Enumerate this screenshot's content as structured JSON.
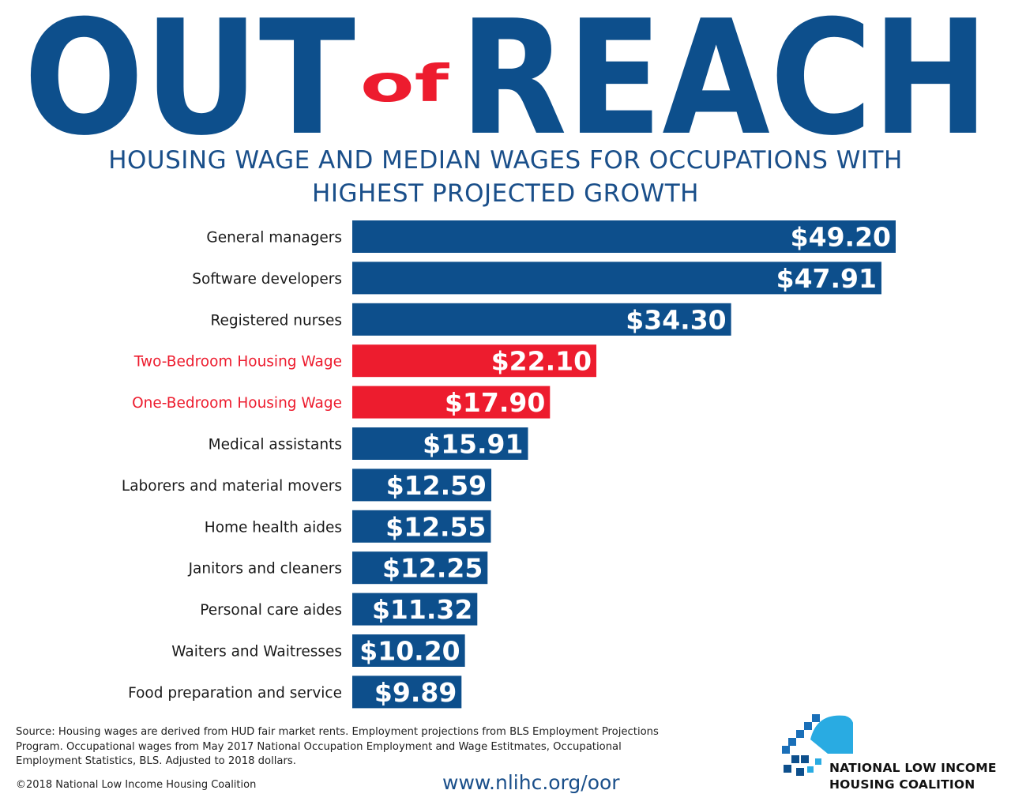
{
  "banner": {
    "word_out": "OUT",
    "word_of": "of",
    "word_reach": "REACH"
  },
  "subtitle": {
    "line1": "HOUSING WAGE AND MEDIAN WAGES FOR OCCUPATIONS WITH",
    "line2": "HIGHEST PROJECTED GROWTH"
  },
  "colors": {
    "blue": "#0d4f8c",
    "red": "#ed1c2e",
    "title_blue": "#1a4f8a",
    "logo_light": "#29abe2"
  },
  "chart_data": {
    "type": "bar",
    "orientation": "horizontal",
    "title": "HOUSING WAGE AND MEDIAN WAGES FOR OCCUPATIONS WITH HIGHEST PROJECTED GROWTH",
    "xlabel": "",
    "ylabel": "",
    "xlim": [
      0,
      50
    ],
    "grid": false,
    "categories": [
      "General managers",
      "Software developers",
      "Registered nurses",
      "Two-Bedroom Housing Wage",
      "One-Bedroom Housing Wage",
      "Medical assistants",
      "Laborers and material movers",
      "Home health aides",
      "Janitors and cleaners",
      "Personal care aides",
      "Waiters and Waitresses",
      "Food preparation and service"
    ],
    "values": [
      49.2,
      47.91,
      34.3,
      22.1,
      17.9,
      15.91,
      12.59,
      12.55,
      12.25,
      11.32,
      10.2,
      9.89
    ],
    "value_labels": [
      "$49.20",
      "$47.91",
      "$34.30",
      "$22.10",
      "$17.90",
      "$15.91",
      "$12.59",
      "$12.55",
      "$12.25",
      "$11.32",
      "$10.20",
      "$9.89"
    ],
    "highlight": [
      false,
      false,
      false,
      true,
      true,
      false,
      false,
      false,
      false,
      false,
      false,
      false
    ]
  },
  "footer": {
    "source": "Source: Housing wages are derived from HUD fair market rents. Employment projections from BLS Employment Projections Program. Occupational wages from May 2017 National Occupation Employment and Wage Estitmates, Occupational Employment Statistics, BLS. Adjusted to 2018 dollars.",
    "copyright": "©2018 National Low Income Housing Coalition",
    "url": "www.nlihc.org/oor"
  },
  "logo": {
    "icon": "house-pixel-logo-icon",
    "line1": "NATIONAL LOW INCOME",
    "line2": "HOUSING COALITION"
  }
}
